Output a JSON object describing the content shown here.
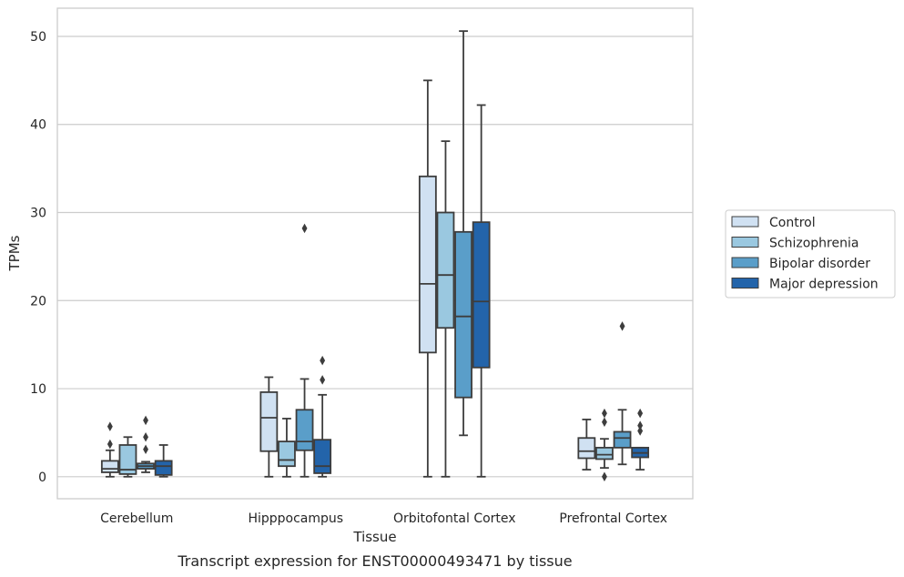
{
  "chart_data": {
    "type": "box",
    "caption": "Transcript expression for ENST00000493471 by tissue",
    "xlabel": "Tissue",
    "ylabel": "TPMs",
    "ylim": [
      -2.5,
      53.2
    ],
    "yticks": [
      0,
      10,
      20,
      30,
      40,
      50
    ],
    "grid": "horizontal",
    "legend": "right",
    "categories": [
      "Cerebellum",
      "Hipppocampus",
      "Orbitofontal Cortex",
      "Prefrontal Cortex"
    ],
    "series": [
      {
        "name": "Control",
        "color": "#d0e1f2",
        "boxes": [
          {
            "whislo": 0,
            "q1": 0.5,
            "med": 0.9,
            "q3": 1.8,
            "whishi": 3.0,
            "fliers": [
              3.7,
              5.7
            ]
          },
          {
            "whislo": 0,
            "q1": 2.9,
            "med": 6.7,
            "q3": 9.6,
            "whishi": 11.3,
            "fliers": []
          },
          {
            "whislo": 0,
            "q1": 14.1,
            "med": 21.9,
            "q3": 34.1,
            "whishi": 45.0,
            "fliers": []
          },
          {
            "whislo": 0.8,
            "q1": 2.1,
            "med": 2.9,
            "q3": 4.4,
            "whishi": 6.5,
            "fliers": []
          }
        ]
      },
      {
        "name": "Schizophrenia",
        "color": "#9ac8e0",
        "boxes": [
          {
            "whislo": 0,
            "q1": 0.3,
            "med": 0.8,
            "q3": 3.6,
            "whishi": 4.5,
            "fliers": []
          },
          {
            "whislo": 0,
            "q1": 1.2,
            "med": 1.9,
            "q3": 4.0,
            "whishi": 6.6,
            "fliers": []
          },
          {
            "whislo": 0,
            "q1": 16.9,
            "med": 22.9,
            "q3": 30.0,
            "whishi": 38.1,
            "fliers": []
          },
          {
            "whislo": 1.0,
            "q1": 2.0,
            "med": 2.5,
            "q3": 3.3,
            "whishi": 4.3,
            "fliers": [
              6.2,
              7.2,
              0
            ]
          }
        ]
      },
      {
        "name": "Bipolar disorder",
        "color": "#5a9ec9",
        "boxes": [
          {
            "whislo": 0.5,
            "q1": 0.9,
            "med": 1.2,
            "q3": 1.5,
            "whishi": 1.7,
            "fliers": [
              3.1,
              4.5,
              6.4
            ]
          },
          {
            "whislo": 0,
            "q1": 3.0,
            "med": 4.0,
            "q3": 7.6,
            "whishi": 11.1,
            "fliers": [
              28.2
            ]
          },
          {
            "whislo": 4.7,
            "q1": 9.0,
            "med": 18.2,
            "q3": 27.8,
            "whishi": 50.6,
            "fliers": []
          },
          {
            "whislo": 1.4,
            "q1": 3.3,
            "med": 4.4,
            "q3": 5.1,
            "whishi": 7.6,
            "fliers": [
              17.1
            ]
          }
        ]
      },
      {
        "name": "Major depression",
        "color": "#2364aa",
        "boxes": [
          {
            "whislo": 0,
            "q1": 0.2,
            "med": 1.2,
            "q3": 1.8,
            "whishi": 3.6,
            "fliers": []
          },
          {
            "whislo": 0,
            "q1": 0.4,
            "med": 1.2,
            "q3": 4.2,
            "whishi": 9.3,
            "fliers": [
              11.0,
              13.2
            ]
          },
          {
            "whislo": 0,
            "q1": 12.4,
            "med": 19.9,
            "q3": 28.9,
            "whishi": 42.2,
            "fliers": []
          },
          {
            "whislo": 0.8,
            "q1": 2.2,
            "med": 2.7,
            "q3": 3.3,
            "whishi": 3.3,
            "fliers": [
              5.2,
              5.8,
              7.2
            ]
          }
        ]
      }
    ]
  }
}
